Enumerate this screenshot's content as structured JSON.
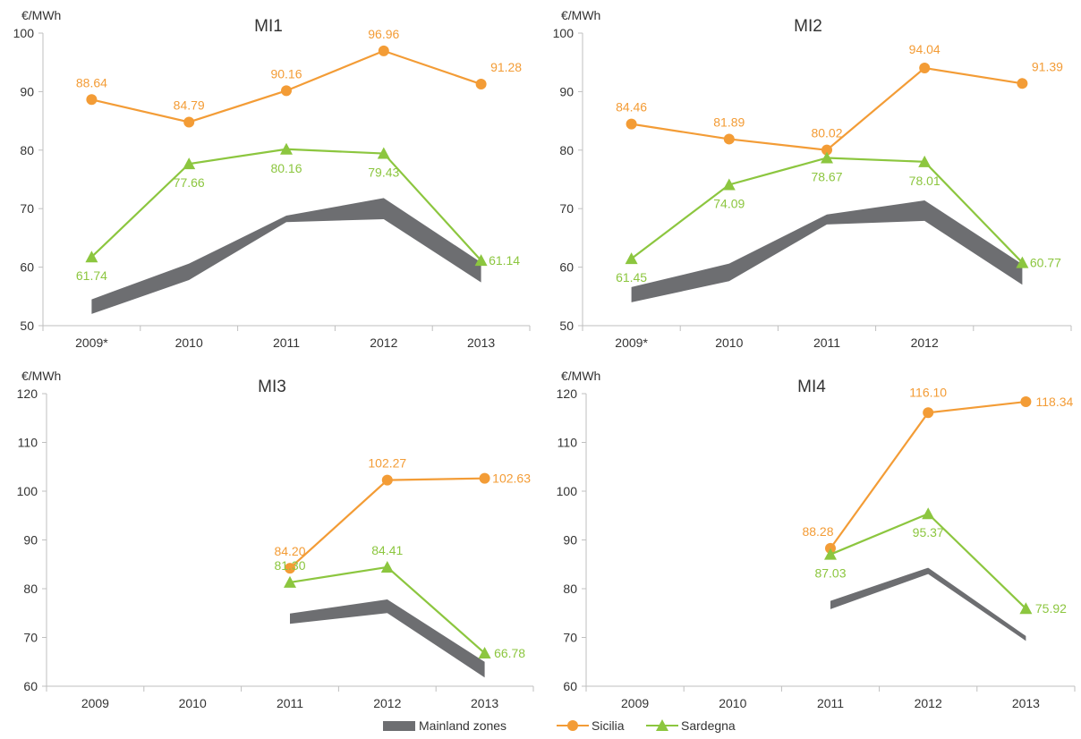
{
  "colors": {
    "sicilia": "#F39C36",
    "sardegna": "#8CC63F",
    "mainland": "#6D6E71",
    "axis": "#BFBFBF",
    "text": "#333333"
  },
  "legend": {
    "mainland_label": "Mainland zones",
    "sicilia_label": "Sicilia",
    "sardegna_label": "Sardegna"
  },
  "chart_data": [
    {
      "type": "line",
      "title": "MI1",
      "ylabel": "€/MWh",
      "ylim": [
        50,
        100
      ],
      "yticks": [
        50,
        60,
        70,
        80,
        90,
        100
      ],
      "categories": [
        "2009*",
        "2010",
        "2011",
        "2012",
        "2013"
      ],
      "series": [
        {
          "name": "Sicilia",
          "marker": "circle",
          "values": [
            88.64,
            84.79,
            90.16,
            96.96,
            91.28
          ],
          "labels": [
            "88.64",
            "84.79",
            "90.16",
            "96.96",
            "91.28"
          ]
        },
        {
          "name": "Sardegna",
          "marker": "triangle",
          "values": [
            61.74,
            77.66,
            80.16,
            79.43,
            61.14
          ],
          "labels": [
            "61.74",
            "77.66",
            "80.16",
            "79.43",
            "61.14"
          ]
        }
      ],
      "band": {
        "name": "Mainland zones",
        "low": [
          52.0,
          57.8,
          67.7,
          68.2,
          57.4
        ],
        "high": [
          54.5,
          60.6,
          68.8,
          71.8,
          60.8
        ]
      }
    },
    {
      "type": "line",
      "title": "MI2",
      "ylabel": "€/MWh",
      "ylim": [
        50,
        100
      ],
      "yticks": [
        50,
        60,
        70,
        80,
        90,
        100
      ],
      "categories": [
        "2009*",
        "2010",
        "2011",
        "2012",
        ""
      ],
      "series": [
        {
          "name": "Sicilia",
          "marker": "circle",
          "values": [
            84.46,
            81.89,
            80.02,
            94.04,
            91.39
          ],
          "labels": [
            "84.46",
            "81.89",
            "80.02",
            "94.04",
            "91.39"
          ]
        },
        {
          "name": "Sardegna",
          "marker": "triangle",
          "values": [
            61.45,
            74.09,
            78.67,
            78.01,
            60.77
          ],
          "labels": [
            "61.45",
            "74.09",
            "78.67",
            "78.01",
            "60.77"
          ]
        }
      ],
      "band": {
        "name": "Mainland zones",
        "low": [
          54.0,
          57.6,
          67.3,
          67.9,
          57.0
        ],
        "high": [
          56.6,
          60.6,
          69.0,
          71.4,
          60.5
        ]
      }
    },
    {
      "type": "line",
      "title": "MI3",
      "ylabel": "€/MWh",
      "ylim": [
        60,
        120
      ],
      "yticks": [
        60,
        70,
        80,
        90,
        100,
        110,
        120
      ],
      "categories": [
        "2009",
        "2010",
        "2011",
        "2012",
        "2013"
      ],
      "series": [
        {
          "name": "Sicilia",
          "marker": "circle",
          "values": [
            null,
            null,
            84.2,
            102.27,
            102.63
          ],
          "labels": [
            "",
            "",
            "84.20",
            "102.27",
            "102.63"
          ]
        },
        {
          "name": "Sardegna",
          "marker": "triangle",
          "values": [
            null,
            null,
            81.3,
            84.41,
            66.78
          ],
          "labels": [
            "",
            "",
            "81.30",
            "84.41",
            "66.78"
          ]
        }
      ],
      "band": {
        "name": "Mainland zones",
        "low": [
          null,
          null,
          72.8,
          75.0,
          61.8
        ],
        "high": [
          null,
          null,
          74.9,
          77.8,
          65.0
        ]
      }
    },
    {
      "type": "line",
      "title": "MI4",
      "ylabel": "€/MWh",
      "ylim": [
        60,
        120
      ],
      "yticks": [
        60,
        70,
        80,
        90,
        100,
        110,
        120
      ],
      "categories": [
        "2009",
        "2010",
        "2011",
        "2012",
        "2013"
      ],
      "series": [
        {
          "name": "Sicilia",
          "marker": "circle",
          "values": [
            null,
            null,
            88.28,
            116.1,
            118.34
          ],
          "labels": [
            "",
            "",
            "88.28",
            "116.10",
            "118.34"
          ]
        },
        {
          "name": "Sardegna",
          "marker": "triangle",
          "values": [
            null,
            null,
            87.03,
            95.37,
            75.92
          ],
          "labels": [
            "",
            "",
            "87.03",
            "95.37",
            "75.92"
          ]
        }
      ],
      "band": {
        "name": "Mainland zones",
        "low": [
          null,
          null,
          75.8,
          83.0,
          69.3
        ],
        "high": [
          null,
          null,
          77.5,
          84.3,
          70.3
        ]
      }
    }
  ]
}
